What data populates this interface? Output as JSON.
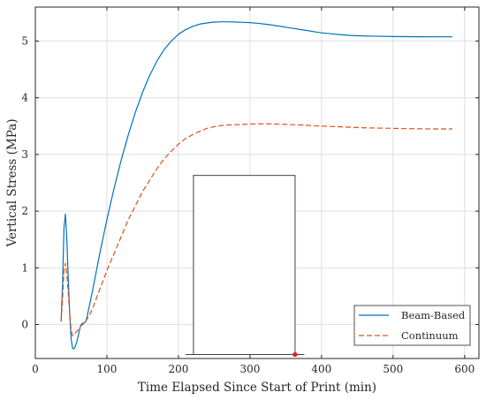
{
  "chart_data": {
    "type": "line",
    "title": "",
    "xlabel": "Time Elapsed Since Start of Print (min)",
    "ylabel": "Vertical Stress (MPa)",
    "xlim": [
      0,
      620
    ],
    "ylim": [
      -0.6,
      5.6
    ],
    "xticks": [
      0,
      100,
      200,
      300,
      400,
      500,
      600
    ],
    "yticks": [
      0,
      1,
      2,
      3,
      4,
      5
    ],
    "grid": true,
    "legend_position": "bottom-right",
    "series": [
      {
        "name": "Beam-Based",
        "color": "#0072BD",
        "style": "solid",
        "x": [
          36,
          38,
          40,
          42,
          44,
          46,
          48,
          50,
          52,
          54,
          56,
          58,
          60,
          62,
          64,
          66,
          68,
          70,
          72,
          75,
          80,
          90,
          100,
          110,
          120,
          130,
          140,
          150,
          160,
          170,
          180,
          190,
          200,
          210,
          220,
          230,
          240,
          250,
          260,
          270,
          280,
          290,
          300,
          310,
          320,
          330,
          340,
          350,
          360,
          370,
          380,
          390,
          400,
          420,
          440,
          460,
          480,
          500,
          520,
          540,
          560,
          583
        ],
        "y": [
          0.05,
          0.7,
          1.7,
          1.95,
          1.5,
          0.8,
          0.2,
          -0.25,
          -0.42,
          -0.43,
          -0.38,
          -0.3,
          -0.2,
          -0.08,
          0.0,
          0.02,
          0.03,
          0.04,
          0.12,
          0.3,
          0.6,
          1.25,
          1.85,
          2.4,
          2.9,
          3.35,
          3.75,
          4.1,
          4.4,
          4.65,
          4.85,
          5.0,
          5.12,
          5.2,
          5.26,
          5.3,
          5.32,
          5.335,
          5.34,
          5.34,
          5.335,
          5.33,
          5.325,
          5.315,
          5.3,
          5.285,
          5.265,
          5.245,
          5.225,
          5.205,
          5.185,
          5.165,
          5.145,
          5.12,
          5.1,
          5.09,
          5.085,
          5.08,
          5.078,
          5.076,
          5.075,
          5.075
        ]
      },
      {
        "name": "Continuum",
        "color": "#D95319",
        "style": "dashed",
        "x": [
          36,
          38,
          40,
          42,
          44,
          46,
          48,
          50,
          52,
          54,
          56,
          58,
          60,
          62,
          64,
          66,
          68,
          70,
          72,
          75,
          80,
          90,
          100,
          110,
          120,
          130,
          140,
          150,
          160,
          170,
          180,
          190,
          200,
          210,
          220,
          230,
          240,
          250,
          260,
          270,
          280,
          290,
          300,
          310,
          320,
          330,
          340,
          350,
          360,
          370,
          380,
          390,
          400,
          420,
          440,
          460,
          480,
          500,
          520,
          540,
          560,
          583
        ],
        "y": [
          0.05,
          0.45,
          0.95,
          1.08,
          0.9,
          0.55,
          0.2,
          -0.1,
          -0.2,
          -0.18,
          -0.15,
          -0.12,
          -0.09,
          -0.05,
          -0.02,
          0.0,
          0.02,
          0.05,
          0.09,
          0.15,
          0.28,
          0.62,
          0.95,
          1.25,
          1.55,
          1.85,
          2.1,
          2.35,
          2.55,
          2.75,
          2.92,
          3.06,
          3.18,
          3.28,
          3.35,
          3.41,
          3.46,
          3.49,
          3.51,
          3.52,
          3.525,
          3.53,
          3.535,
          3.54,
          3.54,
          3.54,
          3.535,
          3.53,
          3.525,
          3.52,
          3.515,
          3.505,
          3.5,
          3.49,
          3.48,
          3.47,
          3.465,
          3.46,
          3.455,
          3.452,
          3.45,
          3.45
        ]
      }
    ],
    "inset": {
      "description": "schematic of printed wall with sensor point",
      "outline_color": "#404040",
      "marker_color": "#e31a1c",
      "rect_x": [
        221,
        363
      ],
      "rect_y": [
        -0.53,
        2.63
      ],
      "base_x": [
        210,
        376
      ],
      "base_y": -0.53,
      "marker": [
        363,
        -0.53
      ]
    }
  }
}
